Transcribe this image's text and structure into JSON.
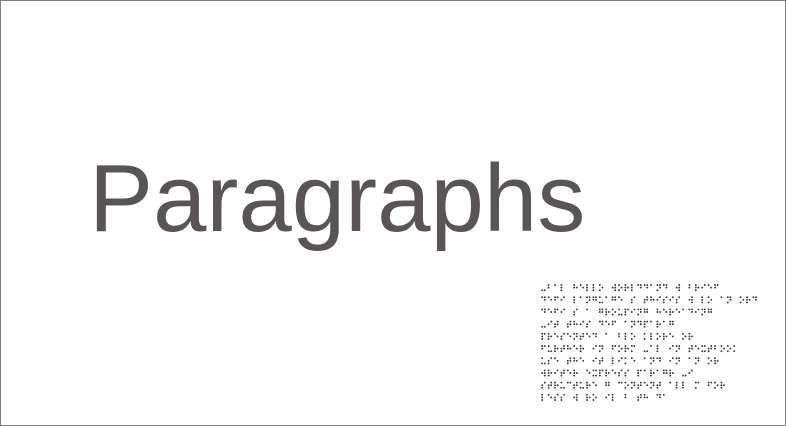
{
  "heading": {
    "text": "Paragraphs"
  },
  "colors": {
    "heading": "#5a5555",
    "braille_dots": "#3c3c3c",
    "border": "#7f7f7f",
    "background": "#ffffff"
  },
  "braille_text": {
    "lines": [
      ".⠃⠁⠇ ⠓⠑⠇⠇⠕ ⠺⠕⠗⠇⠙⠙⠁⠝⠙ ⠺ ⠃⠗⠊⠑⠋",
      "⠙⠑⠋⠊ ⠇⠁⠝⠛⠥⠁⠛⠑ ⠎ ⠞⠓⠊⠎⠊⠎ ⠺ ⠇⠕ ⠁⠝ ⠕⠗⠙",
      "⠙⠑⠋⠊ ⠎ ⠁ ⠛⠗⠕⠥⠏⠊⠝⠛ ⠓⠑⠗⠑⠁⠙⠊⠝⠛",
      ".⠊⠞ ⠞⠓⠊⠎ ⠙⠑⠋ ⠁⠝⠙⠏⠁⠗⠁⠛",
      "⠏⠗⠑⠎⠑⠝⠞⠑⠙ ⠁ ⠃⠇⠕ ⠅⠇⠕⠗⠑ ⠕⠗",
      "⠋⠥⠗⠞⠓⠑⠗ ⠊⠝ ⠋⠕⠗⠍ .⠁⠇ ⠊⠝ ⠞⠑⠭⠞⠃⠕⠕⠅",
      "⠥⠎⠑ ⠞⠓⠑ ⠊⠞ ⠇⠊⠅⠑ ⠁⠝⠙ ⠊⠝ ⠁⠝ ⠕⠗",
      "⠺⠗⠊⠞⠑⠗ ⠑⠭⠏⠗⠑⠎⠎ ⠏⠁⠗⠁⠛⠗ .⠊",
      "⠎⠞⠗⠥⠉⠞⠥⠗⠑ ⠛ ⠉⠕⠝⠞⠑⠝⠞ ⠁⠇⠇ ⠍ ⠋⠕⠗",
      "⠇⠑⠎⠎ ⠺ ⠗⠕ ⠊⠇ ⠃ ⠞⠓ ⠙⠁"
    ]
  }
}
